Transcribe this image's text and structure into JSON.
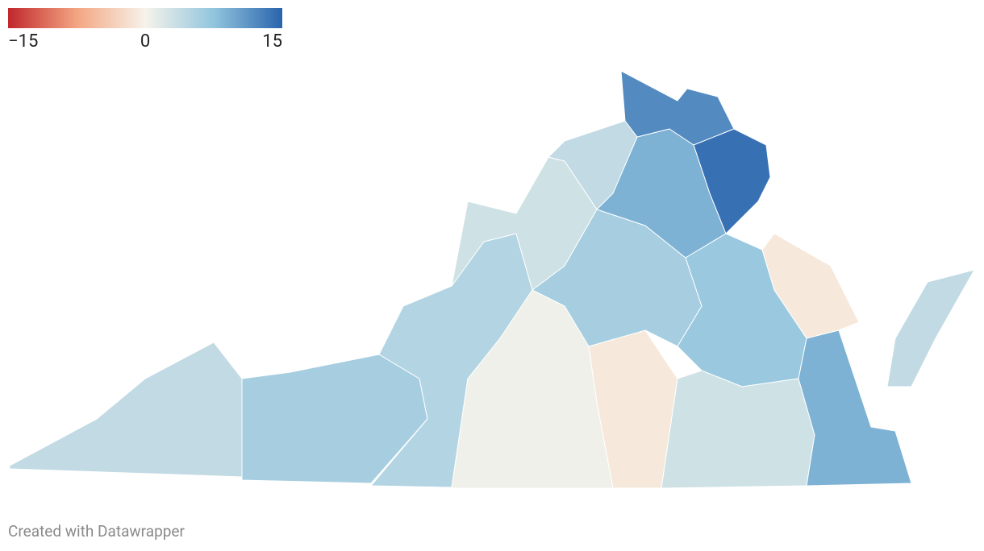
{
  "chart_data": {
    "type": "choropleth",
    "legend": {
      "domain": [
        -15,
        15
      ],
      "ticks": [
        {
          "value": -15,
          "label": "−15"
        },
        0,
        15
      ],
      "colors": [
        "#c1272d",
        "#f3a582",
        "#f6f3ea",
        "#92c5de",
        "#2964ad"
      ]
    },
    "values": [
      4,
      6,
      5,
      3,
      4,
      0.5,
      -1,
      6,
      9,
      12,
      14,
      7,
      -1,
      3,
      9,
      4
    ],
    "credit": "Created with Datawrapper"
  }
}
